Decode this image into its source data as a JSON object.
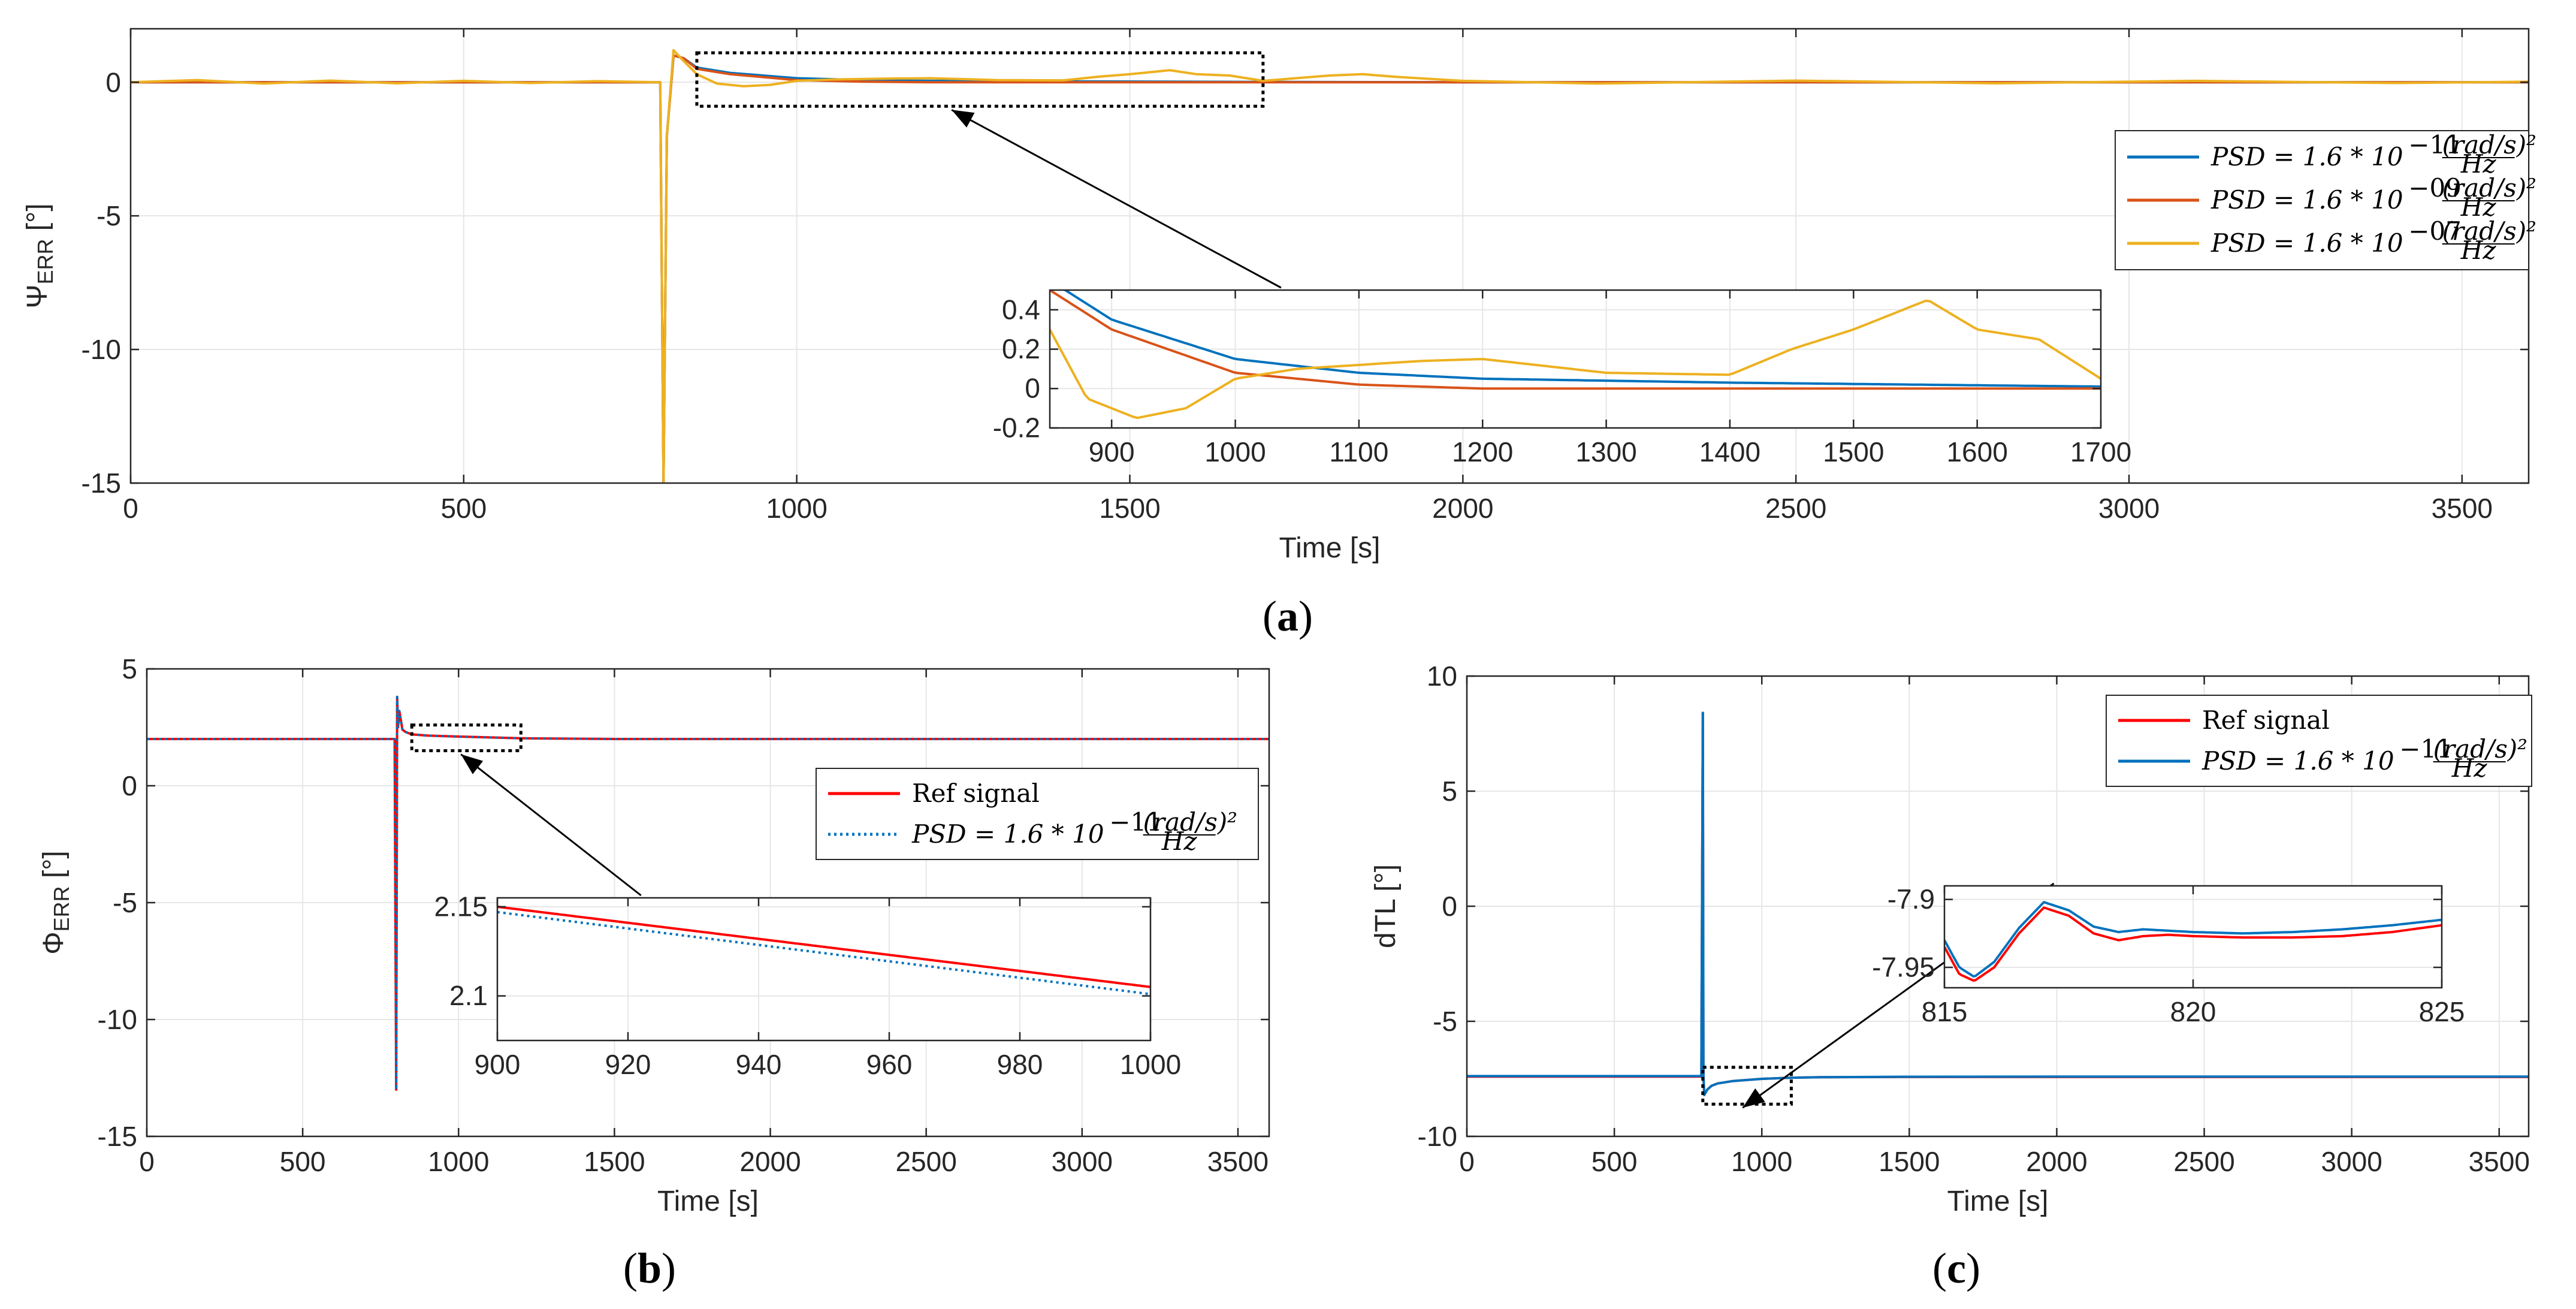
{
  "figure": {
    "panels": [
      {
        "id": "a",
        "label": "a"
      },
      {
        "id": "b",
        "label": "b"
      },
      {
        "id": "c",
        "label": "c"
      }
    ]
  },
  "chart_data": [
    {
      "id": "a",
      "type": "line",
      "xlabel": "Time [s]",
      "ylabel": "Ψ",
      "ylabel_sub": "ERR",
      "ylabel_unit": " [°]",
      "xlim": [
        0,
        3600
      ],
      "ylim": [
        -15,
        2
      ],
      "xticks": [
        0,
        500,
        1000,
        1500,
        2000,
        2500,
        3000,
        3500
      ],
      "yticks": [
        -15,
        -10,
        -5,
        0
      ],
      "series": [
        {
          "name": "PSD = 1.6 * 10^-11 (rad/s)^2/Hz",
          "color": "#0072BD",
          "legend": {
            "base": "PSD = 1.6 * 10",
            "exp": "−11",
            "num": "(rad/s)²",
            "den": "Hz"
          },
          "x": [
            0,
            795,
            800,
            805,
            815,
            830,
            850,
            900,
            1000,
            1100,
            1200,
            1400,
            1700,
            2000,
            2500,
            3000,
            3600
          ],
          "y": [
            0,
            0,
            -15,
            -2,
            1.0,
            0.9,
            0.55,
            0.35,
            0.15,
            0.08,
            0.05,
            0.03,
            0.01,
            0,
            0,
            0,
            0
          ]
        },
        {
          "name": "PSD = 1.6 * 10^-09 (rad/s)^2/Hz",
          "color": "#D95319",
          "legend": {
            "base": "PSD = 1.6 * 10",
            "exp": "−09",
            "num": "(rad/s)²",
            "den": "Hz"
          },
          "x": [
            0,
            795,
            800,
            805,
            815,
            830,
            850,
            900,
            1000,
            1100,
            1200,
            1400,
            1700,
            2000,
            2500,
            3000,
            3600
          ],
          "y": [
            0,
            0,
            -15,
            -2,
            1.0,
            0.9,
            0.5,
            0.3,
            0.08,
            0.02,
            0,
            0,
            0,
            0,
            0,
            0,
            0
          ]
        },
        {
          "name": "PSD = 1.6 * 10^-07 (rad/s)^2/Hz",
          "color": "#EDB120",
          "legend": {
            "base": "PSD = 1.6 * 10",
            "exp": "−07",
            "num": "(rad/s)²",
            "den": "Hz"
          },
          "x": [
            0,
            100,
            200,
            300,
            400,
            500,
            600,
            700,
            795,
            800,
            805,
            815,
            830,
            850,
            880,
            920,
            960,
            1000,
            1050,
            1100,
            1150,
            1200,
            1300,
            1400,
            1450,
            1500,
            1560,
            1600,
            1650,
            1700,
            1800,
            1850,
            1900,
            2000,
            2200,
            2500,
            2800,
            3100,
            3400,
            3600
          ],
          "y": [
            0,
            0.08,
            -0.05,
            0.06,
            -0.04,
            0.05,
            -0.03,
            0.04,
            0,
            -15,
            -2,
            1.2,
            0.8,
            0.3,
            -0.05,
            -0.15,
            -0.1,
            0.05,
            0.1,
            0.12,
            0.14,
            0.15,
            0.08,
            0.07,
            0.2,
            0.3,
            0.45,
            0.3,
            0.25,
            0.05,
            0.25,
            0.3,
            0.2,
            0.05,
            -0.05,
            0.06,
            -0.04,
            0.05,
            -0.03,
            0.02
          ]
        }
      ],
      "inset": {
        "xlim": [
          850,
          1700
        ],
        "ylim": [
          -0.2,
          0.5
        ],
        "xticks": [
          900,
          1000,
          1100,
          1200,
          1300,
          1400,
          1500,
          1600,
          1700
        ],
        "yticks": [
          -0.2,
          0,
          0.2,
          0.4
        ],
        "zoom_x": [
          850,
          1700
        ],
        "zoom_y": [
          -0.9,
          1.1
        ]
      }
    },
    {
      "id": "b",
      "type": "line",
      "xlabel": "Time [s]",
      "ylabel": "Φ",
      "ylabel_sub": "ERR",
      "ylabel_unit": " [°]",
      "xlim": [
        0,
        3600
      ],
      "ylim": [
        -15,
        5
      ],
      "xticks": [
        0,
        500,
        1000,
        1500,
        2000,
        2500,
        3000,
        3500
      ],
      "yticks": [
        -15,
        -10,
        -5,
        0,
        5
      ],
      "series": [
        {
          "name": "Ref signal",
          "color": "#FF0000",
          "style": "solid",
          "legend": {
            "plain": "Ref signal"
          },
          "x": [
            0,
            795,
            800,
            803,
            806,
            810,
            815,
            820,
            830,
            850,
            900,
            1000,
            1200,
            1500,
            2000,
            3600
          ],
          "y": [
            2,
            2,
            -13,
            3.8,
            2.5,
            3.2,
            2.8,
            2.4,
            2.3,
            2.2,
            2.15,
            2.105,
            2.03,
            2.0,
            2.0,
            2.0
          ]
        },
        {
          "name": "PSD = 1.6 * 10^-11 (rad/s)^2/Hz",
          "color": "#0072BD",
          "style": "dotted",
          "legend": {
            "base": "PSD = 1.6 * 10",
            "exp": "−11",
            "num": "(rad/s)²",
            "den": "Hz"
          },
          "x": [
            0,
            795,
            800,
            803,
            806,
            810,
            815,
            820,
            830,
            850,
            900,
            1000,
            1200,
            1500,
            2000,
            3600
          ],
          "y": [
            2,
            2,
            -13,
            3.8,
            2.5,
            3.2,
            2.8,
            2.4,
            2.3,
            2.2,
            2.147,
            2.101,
            2.03,
            2.0,
            2.0,
            2.0
          ]
        }
      ],
      "inset": {
        "xlim": [
          900,
          1000
        ],
        "ylim": [
          2.075,
          2.155
        ],
        "xticks": [
          900,
          920,
          940,
          960,
          980,
          1000
        ],
        "yticks": [
          2.1,
          2.15
        ],
        "zoom_x": [
          850,
          1200
        ],
        "zoom_y": [
          1.5,
          2.6
        ]
      }
    },
    {
      "id": "c",
      "type": "line",
      "xlabel": "Time [s]",
      "ylabel": "dTL [°]",
      "xlim": [
        0,
        3600
      ],
      "ylim": [
        -10,
        10
      ],
      "xticks": [
        0,
        500,
        1000,
        1500,
        2000,
        2500,
        3000,
        3500
      ],
      "yticks": [
        -10,
        -5,
        0,
        5,
        10
      ],
      "series": [
        {
          "name": "Ref signal",
          "color": "#FF0000",
          "style": "solid",
          "legend": {
            "plain": "Ref signal"
          },
          "x": [
            0,
            795,
            800,
            802,
            805,
            815,
            830,
            850,
            900,
            1000,
            1100,
            1200,
            1500,
            2000,
            2500,
            3000,
            3600
          ],
          "y": [
            -7.4,
            -7.4,
            8.4,
            -7.4,
            -8.2,
            -7.97,
            -7.8,
            -7.7,
            -7.6,
            -7.5,
            -7.45,
            -7.43,
            -7.42,
            -7.42,
            -7.42,
            -7.42,
            -7.42
          ]
        },
        {
          "name": "PSD = 1.6 * 10^-11 (rad/s)^2/Hz",
          "color": "#0072BD",
          "style": "solid",
          "legend": {
            "base": "PSD = 1.6 * 10",
            "exp": "−11",
            "num": "(rad/s)²",
            "den": "Hz"
          },
          "x": [
            0,
            795,
            800,
            802,
            805,
            815,
            830,
            850,
            900,
            1000,
            1100,
            1200,
            1500,
            2000,
            2500,
            3000,
            3600
          ],
          "y": [
            -7.38,
            -7.38,
            8.4,
            -7.4,
            -8.2,
            -7.97,
            -7.8,
            -7.7,
            -7.6,
            -7.5,
            -7.45,
            -7.43,
            -7.41,
            -7.4,
            -7.4,
            -7.4,
            -7.4
          ]
        }
      ],
      "inset": {
        "xlim": [
          815,
          825
        ],
        "ylim": [
          -7.965,
          -7.89
        ],
        "xticks": [
          815,
          820,
          825
        ],
        "yticks": [
          -7.95,
          -7.9
        ],
        "zoom_x": [
          800,
          1100
        ],
        "zoom_y": [
          -8.6,
          -7.0
        ],
        "curves": [
          {
            "color": "#FF0000",
            "x": [
              815,
              815.3,
              815.6,
              816.0,
              816.5,
              817.0,
              817.5,
              818.0,
              818.5,
              819.0,
              819.5,
              820,
              821,
              822,
              823,
              824,
              825
            ],
            "y": [
              -7.935,
              -7.955,
              -7.96,
              -7.95,
              -7.925,
              -7.906,
              -7.912,
              -7.925,
              -7.93,
              -7.927,
              -7.926,
              -7.927,
              -7.928,
              -7.928,
              -7.927,
              -7.924,
              -7.919
            ]
          },
          {
            "color": "#0072BD",
            "x": [
              815,
              815.3,
              815.6,
              816.0,
              816.5,
              817.0,
              817.5,
              818.0,
              818.5,
              819.0,
              819.5,
              820,
              821,
              822,
              823,
              824,
              825
            ],
            "y": [
              -7.93,
              -7.95,
              -7.957,
              -7.946,
              -7.921,
              -7.902,
              -7.908,
              -7.92,
              -7.924,
              -7.922,
              -7.923,
              -7.924,
              -7.925,
              -7.924,
              -7.922,
              -7.919,
              -7.915
            ]
          }
        ]
      }
    }
  ]
}
